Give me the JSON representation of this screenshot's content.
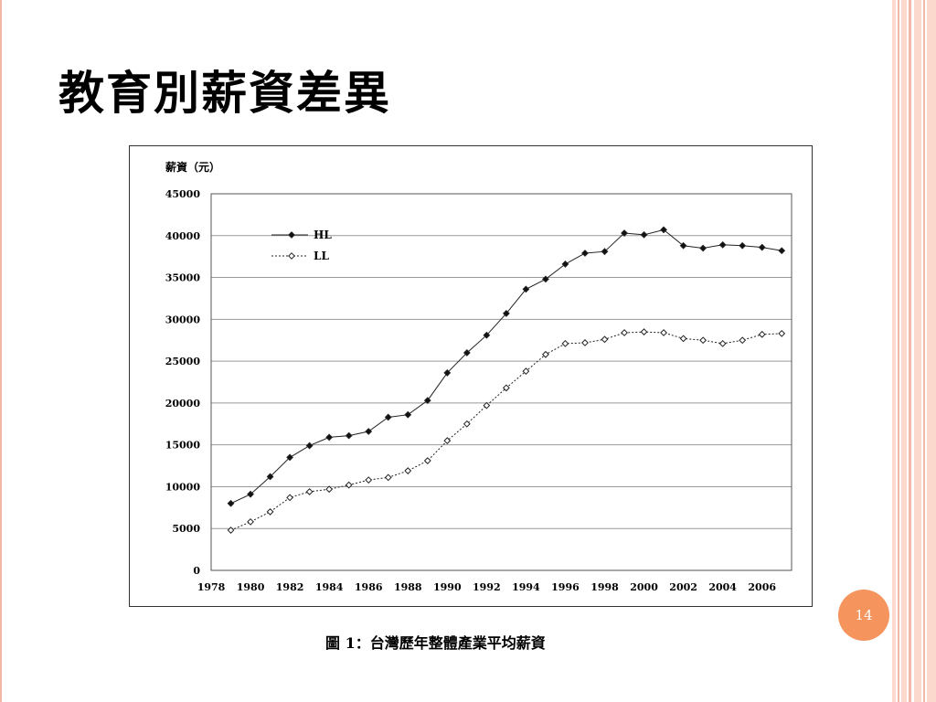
{
  "slide": {
    "title": "教育別薪資差異",
    "caption": "圖 1：台灣歷年整體產業平均薪資",
    "page_number": "14"
  },
  "colors": {
    "accent_circle": "#f5945c",
    "stripe_light": "#fbd9cc",
    "stripe_mid": "#f2b8a6"
  },
  "chart_data": {
    "type": "line",
    "ylabel": "薪資（元）",
    "ylim": [
      0,
      45000
    ],
    "yticks": [
      0,
      5000,
      10000,
      15000,
      20000,
      25000,
      30000,
      35000,
      40000,
      45000
    ],
    "xlim": [
      1978,
      2007.5
    ],
    "xticks": [
      1978,
      1980,
      1982,
      1984,
      1986,
      1988,
      1990,
      1992,
      1994,
      1996,
      1998,
      2000,
      2002,
      2004,
      2006
    ],
    "grid": true,
    "legend_position": "top-left",
    "x": [
      1979,
      1980,
      1981,
      1982,
      1983,
      1984,
      1985,
      1986,
      1987,
      1988,
      1989,
      1990,
      1991,
      1992,
      1993,
      1994,
      1995,
      1996,
      1997,
      1998,
      1999,
      2000,
      2001,
      2002,
      2003,
      2004,
      2005,
      2006,
      2007
    ],
    "series": [
      {
        "name": "HL",
        "style": "solid",
        "marker": "filled-diamond",
        "values": [
          8000,
          9100,
          11200,
          13500,
          14900,
          15900,
          16100,
          16600,
          18300,
          18600,
          20300,
          23600,
          26000,
          28100,
          30700,
          33600,
          34800,
          36600,
          37900,
          38100,
          40300,
          40100,
          40700,
          38800,
          38500,
          38900,
          38800,
          38600,
          38200
        ]
      },
      {
        "name": "LL",
        "style": "dotted",
        "marker": "open-diamond",
        "values": [
          4800,
          5800,
          7000,
          8700,
          9400,
          9700,
          10200,
          10800,
          11100,
          11900,
          13100,
          15500,
          17500,
          19700,
          21800,
          23800,
          25800,
          27100,
          27200,
          27600,
          28400,
          28500,
          28400,
          27700,
          27500,
          27100,
          27500,
          28200,
          28300
        ]
      }
    ]
  }
}
